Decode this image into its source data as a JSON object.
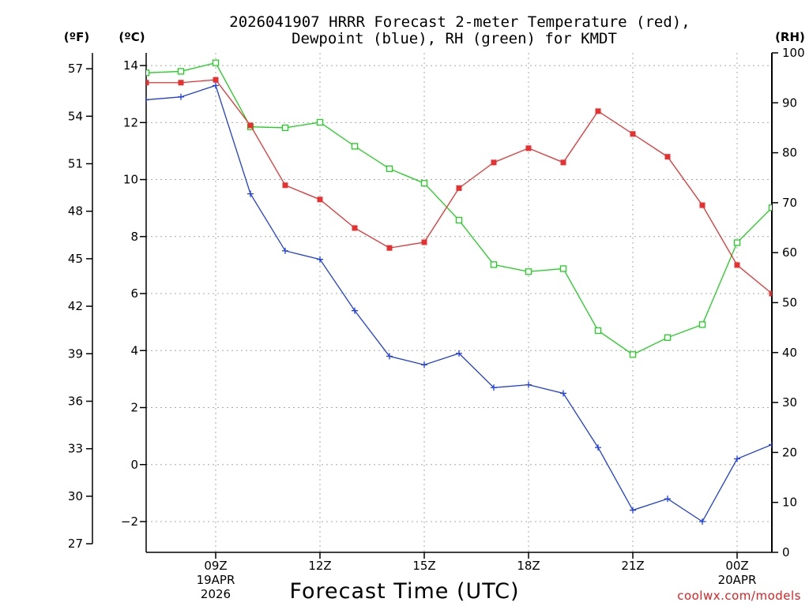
{
  "title": {
    "line1": "2026041907 HRRR Forecast 2-meter Temperature (red),",
    "line2": "Dewpoint (blue), RH (green) for KMDT"
  },
  "axis_units": {
    "fahrenheit": "(ºF)",
    "celsius": "(ºC)",
    "rh": "(RH)"
  },
  "x_axis_label": "Forecast Time (UTC)",
  "credit": "coolwx.com/models",
  "date_labels": [
    {
      "hour": 9,
      "lines": [
        "19APR",
        "2026"
      ]
    },
    {
      "hour": 24,
      "lines": [
        "20APR"
      ]
    }
  ],
  "colors": {
    "temperature": "#e83030",
    "dewpoint": "#1f3fe0",
    "rh": "#20d020",
    "grid": "#a8a8a8"
  },
  "chart_data": {
    "type": "line",
    "title": "2026041907 HRRR Forecast 2-meter Temperature (red), Dewpoint (blue), RH (green) for KMDT",
    "xlabel": "Forecast Time (UTC)",
    "ylabel_left_outer": "(ºF)",
    "ylabel_left_inner": "(ºC)",
    "ylabel_right": "(RH)",
    "x": [
      7,
      8,
      9,
      10,
      11,
      12,
      13,
      14,
      15,
      16,
      17,
      18,
      19,
      20,
      21,
      22,
      23,
      24,
      25
    ],
    "xlim": [
      7,
      25
    ],
    "x_ticks": [
      9,
      12,
      15,
      18,
      21,
      24
    ],
    "x_tick_labels": [
      "09Z",
      "12Z",
      "15Z",
      "18Z",
      "21Z",
      "00Z"
    ],
    "ylim_celsius": [
      -3,
      14.5
    ],
    "celsius_ticks": [
      -2,
      0,
      2,
      4,
      6,
      8,
      10,
      12,
      14
    ],
    "celsius_tick_labels": [
      "−2",
      "0",
      "2",
      "4",
      "6",
      "8",
      "10",
      "12",
      "14"
    ],
    "fahrenheit_ticks": [
      27,
      30,
      33,
      36,
      39,
      42,
      45,
      48,
      51,
      54,
      57
    ],
    "fahrenheit_tick_labels": [
      "27",
      "30",
      "33",
      "36",
      "39",
      "42",
      "45",
      "48",
      "51",
      "54",
      "57"
    ],
    "ylim_rh": [
      0,
      100
    ],
    "rh_ticks": [
      0,
      10,
      20,
      30,
      40,
      50,
      60,
      70,
      80,
      90,
      100
    ],
    "rh_tick_labels": [
      "0",
      "10",
      "20",
      "30",
      "40",
      "50",
      "60",
      "70",
      "80",
      "90",
      "100"
    ],
    "series": [
      {
        "name": "Temperature",
        "units": "C",
        "marker": "filled-square",
        "values": [
          13.4,
          13.4,
          13.5,
          11.9,
          9.8,
          9.3,
          8.3,
          7.6,
          7.8,
          9.7,
          10.6,
          11.1,
          10.6,
          12.4,
          11.6,
          10.8,
          9.1,
          7.0,
          6.0
        ]
      },
      {
        "name": "Dewpoint",
        "units": "C",
        "marker": "plus",
        "values": [
          12.8,
          12.9,
          13.3,
          9.5,
          7.5,
          7.2,
          5.4,
          3.8,
          3.5,
          3.9,
          2.7,
          2.8,
          2.5,
          0.6,
          -1.6,
          -1.2,
          -2.0,
          0.2,
          0.7
        ]
      },
      {
        "name": "RH",
        "units": "%",
        "marker": "open-square",
        "values": [
          96,
          96.3,
          98,
          85.2,
          85,
          86.1,
          81.3,
          76.8,
          73.9,
          66.5,
          57.6,
          56.2,
          56.8,
          44.4,
          39.6,
          43,
          45.6,
          62,
          69
        ]
      }
    ]
  }
}
